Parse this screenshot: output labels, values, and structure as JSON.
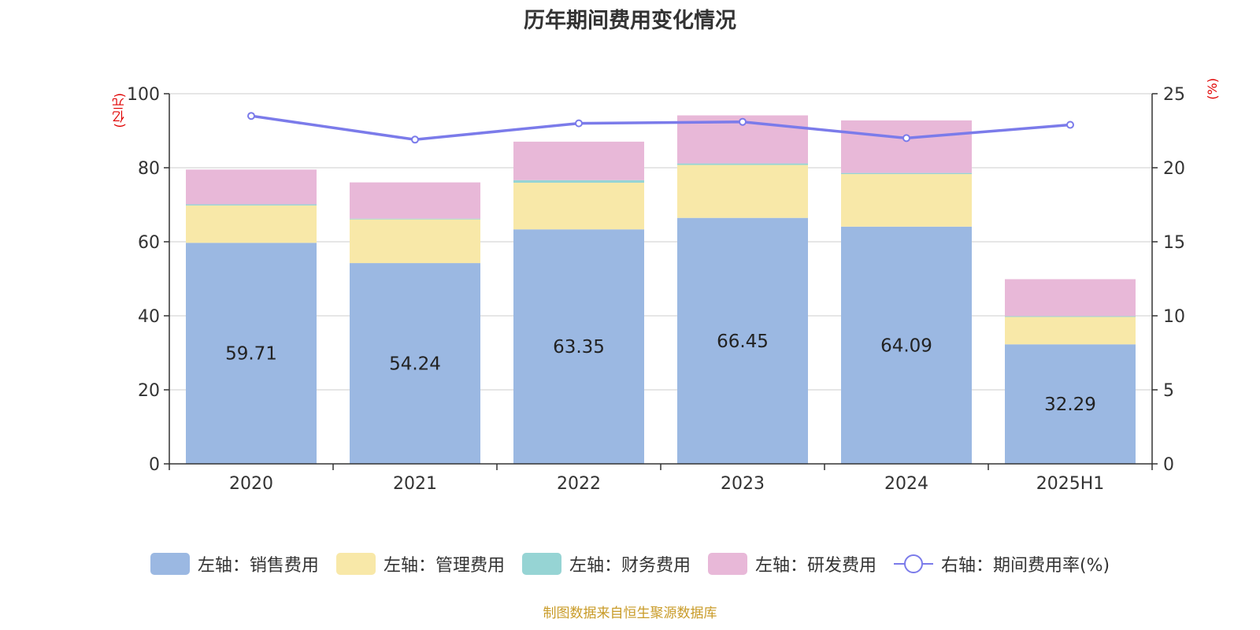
{
  "chart_data": {
    "type": "bar",
    "title": "历年期间费用变化情况",
    "categories": [
      "2020",
      "2021",
      "2022",
      "2023",
      "2024",
      "2025H1"
    ],
    "left_axis": {
      "unit": "(亿元)",
      "ylim": [
        0,
        100
      ],
      "ticks": [
        "0",
        "20",
        "40",
        "60",
        "80",
        "100"
      ]
    },
    "right_axis": {
      "unit": "(%)",
      "ylim": [
        0,
        25
      ],
      "ticks": [
        "0",
        "5",
        "10",
        "15",
        "20",
        "25"
      ]
    },
    "series": [
      {
        "name": "左轴：销售费用",
        "type": "bar",
        "axis": "left",
        "color": "#9bb8e2",
        "values": [
          59.71,
          54.24,
          63.35,
          66.45,
          64.09,
          32.29
        ],
        "show_labels": true
      },
      {
        "name": "左轴：管理费用",
        "type": "bar",
        "axis": "left",
        "color": "#f8e8a8",
        "values": [
          10.1,
          11.8,
          12.6,
          14.3,
          14.2,
          7.4
        ]
      },
      {
        "name": "左轴：财务费用",
        "type": "bar",
        "axis": "left",
        "color": "#96d4d4",
        "values": [
          0.3,
          0.2,
          0.7,
          0.4,
          0.3,
          0.2
        ]
      },
      {
        "name": "左轴：研发费用",
        "type": "bar",
        "axis": "left",
        "color": "#e8b8d8",
        "values": [
          9.4,
          9.8,
          10.4,
          13.0,
          14.2,
          10.0
        ]
      },
      {
        "name": "右轴：期间费用率(%)",
        "type": "line",
        "axis": "right",
        "color": "#7b7bea",
        "values": [
          23.5,
          21.9,
          23.0,
          23.1,
          22.0,
          22.9
        ]
      }
    ],
    "stacked": true,
    "grid": true,
    "legend_position": "bottom"
  },
  "source_note": "制图数据来自恒生聚源数据库"
}
